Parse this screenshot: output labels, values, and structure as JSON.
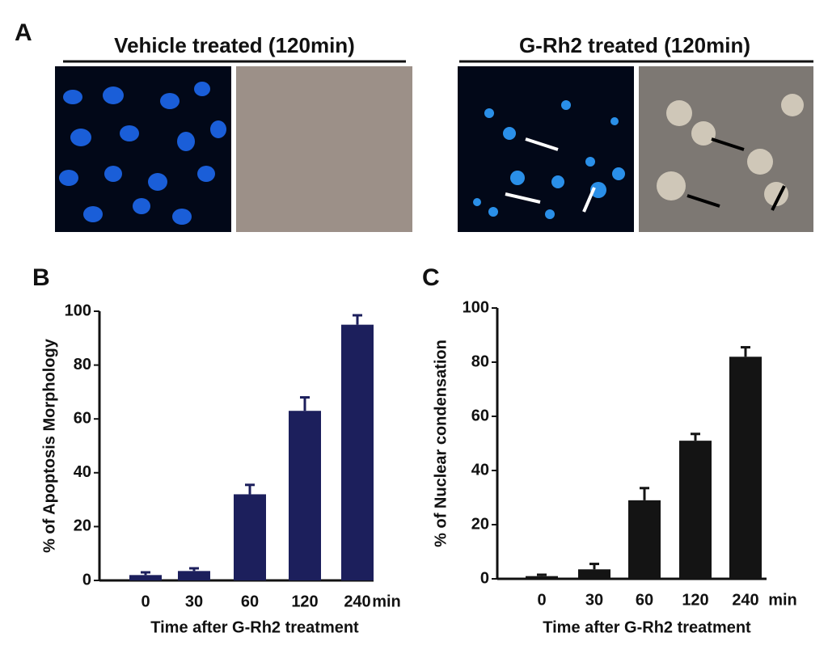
{
  "panel_a": {
    "panel_label": "A",
    "groups": [
      {
        "title": "Vehicle treated (120min)"
      },
      {
        "title": "G-Rh2 treated (120min)"
      }
    ]
  },
  "chart_data": [
    {
      "type": "bar",
      "panel_label": "B",
      "y_label": "% of Apoptosis Morphology",
      "x_label": "Time after G-Rh2 treatment",
      "x_unit": "min",
      "categories": [
        "0",
        "30",
        "60",
        "120",
        "240"
      ],
      "values": [
        2,
        3.5,
        32,
        63,
        95
      ],
      "errors": [
        1,
        1,
        3.5,
        5,
        3.5
      ],
      "color": "#1c1f5c",
      "ylim": [
        0,
        100
      ],
      "yticks": [
        0,
        20,
        40,
        60,
        80,
        100
      ]
    },
    {
      "type": "bar",
      "panel_label": "C",
      "y_label": "% of Nuclear condensation",
      "x_label": "Time after G-Rh2 treatment",
      "x_unit": "min",
      "categories": [
        "0",
        "30",
        "60",
        "120",
        "240"
      ],
      "values": [
        1,
        3.5,
        29,
        51,
        82
      ],
      "errors": [
        0.5,
        2,
        4.5,
        2.5,
        3.5
      ],
      "color": "#141414",
      "ylim": [
        0,
        100
      ],
      "yticks": [
        0,
        20,
        40,
        60,
        80,
        100
      ]
    }
  ]
}
